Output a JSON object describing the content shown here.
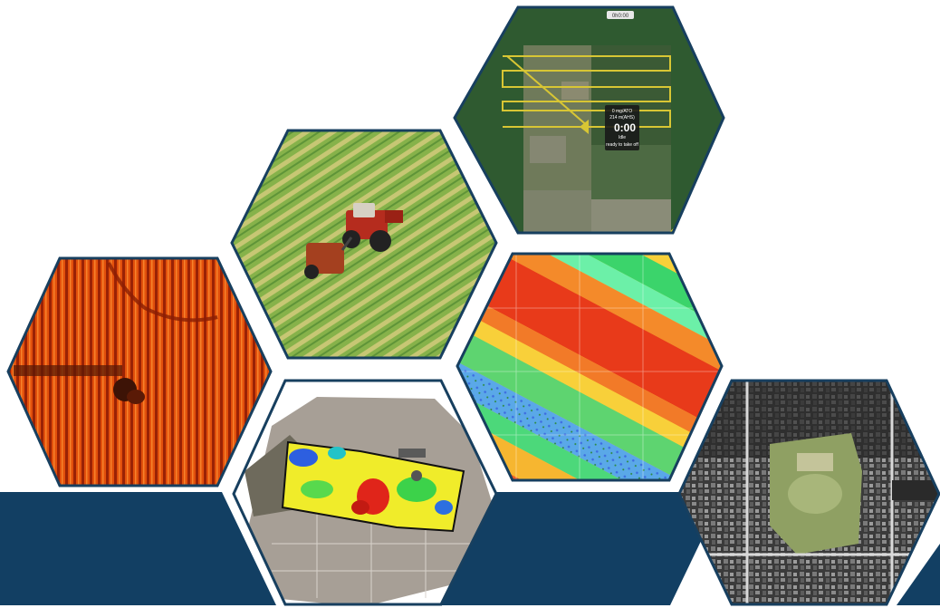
{
  "colors": {
    "navy_band": "#123f63",
    "hex_border": "#173f5f",
    "flight_line": "#d8c634"
  },
  "tiles": [
    {
      "name": "drone-flight-plan-tile",
      "subject": "aerial flight plan over center-pivot field"
    },
    {
      "name": "tractor-baler-tile",
      "subject": "tractor pulling a round baler across a hay field"
    },
    {
      "name": "thermal-field-tile",
      "subject": "orange thermal map of crop rows"
    },
    {
      "name": "ndvi-stripes-tile",
      "subject": "diagonal NDVI stripes red yellow green blue"
    },
    {
      "name": "ndvi-field-tile",
      "subject": "NDVI health map of a single field"
    },
    {
      "name": "satellite-town-tile",
      "subject": "grayscale satellite view of a town with green park"
    }
  ],
  "flight_panel": {
    "line1": "0 mg/ATO",
    "line2": "214 m(AHS)",
    "timer": "0:00",
    "line4": "Idle",
    "status": "ready to take off",
    "badge": "0h0:00"
  }
}
